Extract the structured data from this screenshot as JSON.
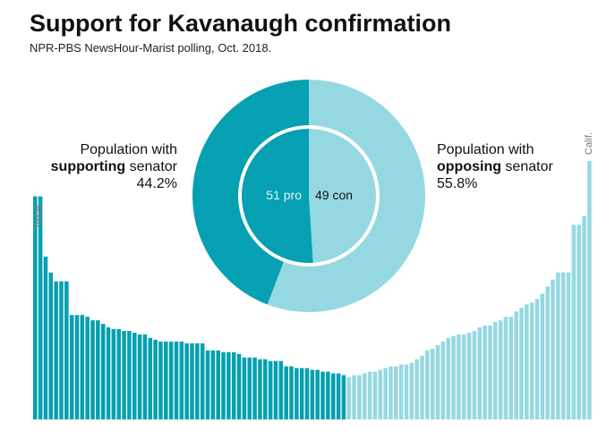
{
  "title": "Support for Kavanaugh confirmation",
  "subtitle": "NPR-PBS NewsHour-Marist polling, Oct. 2018.",
  "colors": {
    "support": "#05a0b1",
    "oppose": "#96d8e2",
    "ring": "#ffffff"
  },
  "left_label": {
    "line1": "Population with",
    "bold": "supporting",
    "rest": " senator",
    "percent": "44.2%"
  },
  "right_label": {
    "line1": "Population with",
    "bold": "opposing",
    "rest": " senator",
    "percent": "55.8%"
  },
  "center": {
    "pro": "51 pro",
    "con": "49 con"
  },
  "state_labels": {
    "left": "Texas",
    "right": "Calif."
  },
  "chart_data": [
    {
      "type": "pie",
      "subtype": "donut",
      "labels": [
        "Population with supporting senator",
        "Population with opposing senator"
      ],
      "values": [
        44.2,
        55.8
      ],
      "unit": "%"
    },
    {
      "type": "pie",
      "subtype": "inner-circle",
      "labels": [
        "51 pro",
        "49 con"
      ],
      "values": [
        51,
        49
      ]
    },
    {
      "type": "bar",
      "series": [
        {
          "name": "supporting",
          "values": [
            12.6,
            12.6,
            9.2,
            8.3,
            7.8,
            7.8,
            7.8,
            5.9,
            5.9,
            5.9,
            5.8,
            5.6,
            5.6,
            5.4,
            5.2,
            5.1,
            5.1,
            5.0,
            5.0,
            4.9,
            4.8,
            4.8,
            4.6,
            4.5,
            4.4,
            4.4,
            4.4,
            4.4,
            4.4,
            4.3,
            4.3,
            4.3,
            4.3,
            3.9,
            3.9,
            3.9,
            3.8,
            3.8,
            3.8,
            3.7,
            3.5,
            3.5,
            3.5,
            3.4,
            3.4,
            3.3,
            3.3,
            3.3,
            3.0,
            3.0,
            2.9,
            2.9,
            2.9,
            2.8,
            2.8,
            2.7,
            2.7,
            2.6,
            2.6,
            2.5
          ]
        },
        {
          "name": "opposing",
          "values": [
            2.4,
            2.5,
            2.5,
            2.6,
            2.7,
            2.7,
            2.8,
            2.9,
            3.0,
            3.0,
            3.1,
            3.1,
            3.2,
            3.4,
            3.6,
            3.9,
            4.0,
            4.2,
            4.4,
            4.6,
            4.7,
            4.8,
            4.8,
            4.9,
            5.0,
            5.2,
            5.3,
            5.3,
            5.5,
            5.6,
            5.8,
            5.8,
            6.1,
            6.3,
            6.5,
            6.6,
            6.8,
            7.1,
            7.5,
            7.9,
            8.3,
            8.3,
            8.3,
            11.0,
            11.0,
            11.5,
            14.6
          ]
        }
      ]
    }
  ]
}
